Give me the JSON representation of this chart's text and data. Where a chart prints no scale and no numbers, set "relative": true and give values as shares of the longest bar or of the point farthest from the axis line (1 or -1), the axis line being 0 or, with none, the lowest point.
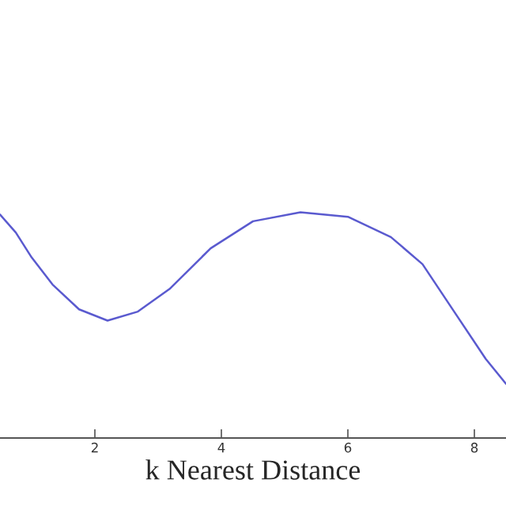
{
  "chart_data": {
    "type": "line",
    "xlabel": "k Nearest Distance",
    "relative": true,
    "xlim": [
      0.5,
      8.5
    ],
    "xticks": [
      2,
      4,
      6,
      8
    ],
    "grid": false,
    "series": [
      {
        "color": "#5a5acf",
        "x": [
          0.5,
          0.75,
          1.0,
          1.33,
          1.75,
          2.2,
          2.68,
          3.18,
          3.83,
          4.5,
          5.25,
          6.0,
          6.68,
          7.18,
          7.68,
          8.18,
          8.5
        ],
        "values": [
          0.99,
          0.91,
          0.8,
          0.68,
          0.57,
          0.52,
          0.56,
          0.66,
          0.84,
          0.96,
          1.0,
          0.98,
          0.89,
          0.77,
          0.56,
          0.35,
          0.24
        ]
      }
    ]
  }
}
